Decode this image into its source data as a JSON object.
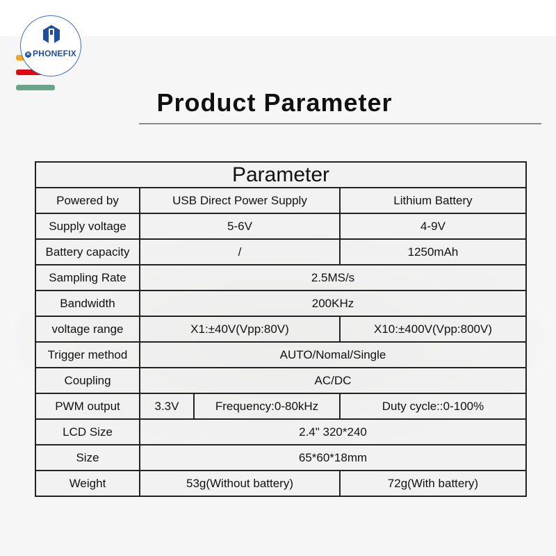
{
  "logo": {
    "brand": "PHONEFIX"
  },
  "accent_bars": {
    "colors": [
      "#f5a623",
      "#e30613",
      "#6aa58a"
    ]
  },
  "title": "Product Parameter",
  "table": {
    "header": "Parameter",
    "rows": [
      {
        "label": "Powered by",
        "values": [
          "USB Direct Power Supply",
          "Lithium Battery"
        ]
      },
      {
        "label": "Supply voltage",
        "values": [
          "5-6V",
          "4-9V"
        ]
      },
      {
        "label": "Battery capacity",
        "values": [
          "/",
          "1250mAh"
        ]
      },
      {
        "label": "Sampling Rate",
        "values": [
          "2.5MS/s"
        ]
      },
      {
        "label": "Bandwidth",
        "values": [
          "200KHz"
        ]
      },
      {
        "label": "voltage range",
        "values": [
          "X1:±40V(Vpp:80V)",
          "X10:±400V(Vpp:800V)"
        ]
      },
      {
        "label": "Trigger method",
        "values": [
          "AUTO/Nomal/Single"
        ]
      },
      {
        "label": "Coupling",
        "values": [
          "AC/DC"
        ]
      },
      {
        "label": "PWM output",
        "values": [
          "3.3V",
          "Frequency:0-80kHz",
          "Duty cycle::0-100%"
        ]
      },
      {
        "label": "LCD Size",
        "values": [
          "2.4\"  320*240"
        ]
      },
      {
        "label": "Size",
        "values": [
          "65*60*18mm"
        ]
      },
      {
        "label": "Weight",
        "values": [
          "53g(Without battery)",
          "72g(With battery)"
        ]
      }
    ]
  }
}
